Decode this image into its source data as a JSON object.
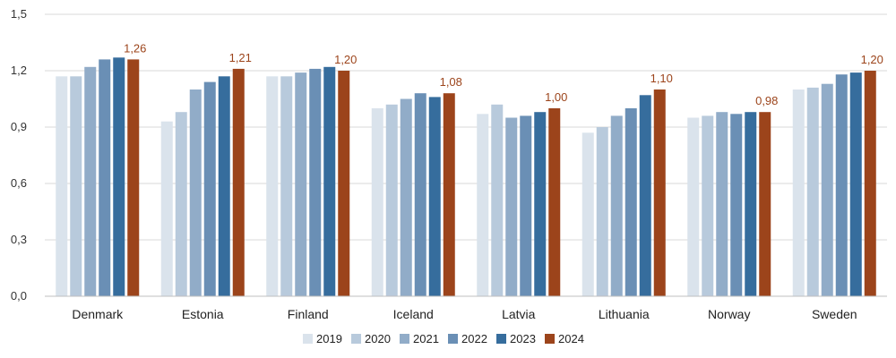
{
  "chart_data": {
    "type": "bar",
    "title": "",
    "xlabel": "",
    "ylabel": "",
    "ylim": [
      0,
      1.5
    ],
    "yticks": [
      "0,0",
      "0,3",
      "0,6",
      "0,9",
      "1,2",
      "1,5"
    ],
    "grid": true,
    "legend_position": "bottom",
    "categories": [
      "Denmark",
      "Estonia",
      "Finland",
      "Iceland",
      "Latvia",
      "Lithuania",
      "Norway",
      "Sweden"
    ],
    "series": [
      {
        "name": "2019",
        "color": "#dae3ec",
        "values": [
          1.17,
          0.93,
          1.17,
          1.0,
          0.97,
          0.87,
          0.95,
          1.1
        ]
      },
      {
        "name": "2020",
        "color": "#b8cadc",
        "values": [
          1.17,
          0.98,
          1.17,
          1.02,
          1.02,
          0.9,
          0.96,
          1.11
        ]
      },
      {
        "name": "2021",
        "color": "#91acc8",
        "values": [
          1.22,
          1.1,
          1.19,
          1.05,
          0.95,
          0.96,
          0.98,
          1.13
        ]
      },
      {
        "name": "2022",
        "color": "#6a8fb5",
        "values": [
          1.26,
          1.14,
          1.21,
          1.08,
          0.96,
          1.0,
          0.97,
          1.18
        ]
      },
      {
        "name": "2023",
        "color": "#366d9d",
        "values": [
          1.27,
          1.17,
          1.22,
          1.06,
          0.98,
          1.07,
          0.98,
          1.19
        ]
      },
      {
        "name": "2024",
        "color": "#9c441b",
        "values": [
          1.26,
          1.21,
          1.2,
          1.08,
          1.0,
          1.1,
          0.98,
          1.2
        ]
      }
    ],
    "data_labels": {
      "series": "2024",
      "color": "#9c441b",
      "values": [
        "1,26",
        "1,21",
        "1,20",
        "1,08",
        "1,00",
        "1,10",
        "0,98",
        "1,20"
      ]
    },
    "gridline_color": "#d9d9d9",
    "axis_color": "#bfbfbf"
  }
}
